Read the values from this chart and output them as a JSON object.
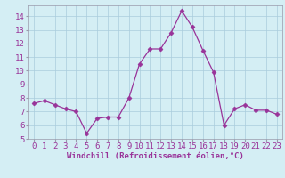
{
  "x": [
    0,
    1,
    2,
    3,
    4,
    5,
    6,
    7,
    8,
    9,
    10,
    11,
    12,
    13,
    14,
    15,
    16,
    17,
    18,
    19,
    20,
    21,
    22,
    23
  ],
  "y": [
    7.6,
    7.8,
    7.5,
    7.2,
    7.0,
    5.4,
    6.5,
    6.6,
    6.6,
    8.0,
    10.5,
    11.6,
    11.6,
    12.8,
    14.4,
    13.2,
    11.5,
    9.9,
    6.0,
    7.2,
    7.5,
    7.1,
    7.1,
    6.8
  ],
  "line_color": "#993399",
  "marker": "D",
  "marker_size": 2.5,
  "bg_color": "#d4eef4",
  "grid_color": "#aaccdd",
  "xlabel": "Windchill (Refroidissement éolien,°C)",
  "ylabel_ticks": [
    5,
    6,
    7,
    8,
    9,
    10,
    11,
    12,
    13,
    14
  ],
  "xlim": [
    -0.5,
    23.5
  ],
  "ylim": [
    5.0,
    14.8
  ],
  "xlabel_fontsize": 6.5,
  "tick_fontsize": 6.5,
  "spine_color": "#9999aa",
  "tick_color": "#993399"
}
